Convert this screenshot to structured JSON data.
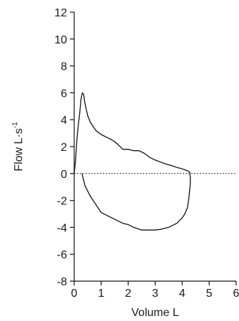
{
  "chart_data": {
    "type": "line",
    "title": "",
    "xlabel": "Volume L",
    "ylabel_main": "Flow L·s",
    "ylabel_sup": "-1",
    "xlim": [
      0,
      6
    ],
    "ylim": [
      -8,
      12
    ],
    "xticks": [
      0,
      1,
      2,
      3,
      4,
      5,
      6
    ],
    "yticks": [
      12,
      10,
      8,
      6,
      4,
      2,
      0,
      -2,
      -4,
      -6,
      -8
    ],
    "xtick_labels": [
      "0",
      "1",
      "2",
      "3",
      "4",
      "5",
      "6"
    ],
    "ytick_labels": [
      "12",
      "10",
      "8",
      "6",
      "4",
      "2",
      "0",
      "-2",
      "-4",
      "-6",
      "-8"
    ],
    "zero_line": {
      "y": 0,
      "style": "dotted",
      "color": "#333333"
    },
    "grid": false,
    "series": [
      {
        "name": "",
        "color": "#111111",
        "points": [
          [
            0.0,
            0.0
          ],
          [
            0.05,
            1.0
          ],
          [
            0.1,
            2.5
          ],
          [
            0.15,
            3.6
          ],
          [
            0.2,
            4.4
          ],
          [
            0.25,
            5.5
          ],
          [
            0.3,
            6.0
          ],
          [
            0.35,
            5.9
          ],
          [
            0.4,
            5.2
          ],
          [
            0.5,
            4.3
          ],
          [
            0.6,
            3.8
          ],
          [
            0.8,
            3.2
          ],
          [
            1.0,
            2.9
          ],
          [
            1.2,
            2.7
          ],
          [
            1.4,
            2.5
          ],
          [
            1.6,
            2.2
          ],
          [
            1.8,
            1.8
          ],
          [
            2.0,
            1.8
          ],
          [
            2.2,
            1.7
          ],
          [
            2.4,
            1.7
          ],
          [
            2.6,
            1.5
          ],
          [
            2.8,
            1.2
          ],
          [
            3.0,
            1.0
          ],
          [
            3.2,
            0.85
          ],
          [
            3.4,
            0.7
          ],
          [
            3.6,
            0.6
          ],
          [
            3.8,
            0.45
          ],
          [
            4.0,
            0.35
          ],
          [
            4.2,
            0.2
          ],
          [
            4.28,
            0.1
          ],
          [
            4.3,
            -0.3
          ],
          [
            4.3,
            -0.8
          ],
          [
            4.28,
            -1.2
          ],
          [
            4.25,
            -1.8
          ],
          [
            4.2,
            -2.5
          ],
          [
            4.1,
            -3.0
          ],
          [
            4.0,
            -3.3
          ],
          [
            3.8,
            -3.7
          ],
          [
            3.5,
            -4.0
          ],
          [
            3.2,
            -4.15
          ],
          [
            3.0,
            -4.2
          ],
          [
            2.5,
            -4.2
          ],
          [
            2.2,
            -4.0
          ],
          [
            2.0,
            -3.8
          ],
          [
            1.8,
            -3.7
          ],
          [
            1.5,
            -3.4
          ],
          [
            1.2,
            -3.1
          ],
          [
            1.0,
            -2.9
          ],
          [
            0.8,
            -2.3
          ],
          [
            0.6,
            -1.7
          ],
          [
            0.5,
            -1.3
          ],
          [
            0.4,
            -0.9
          ],
          [
            0.3,
            -0.1
          ],
          [
            0.3,
            0.0
          ]
        ]
      }
    ]
  }
}
